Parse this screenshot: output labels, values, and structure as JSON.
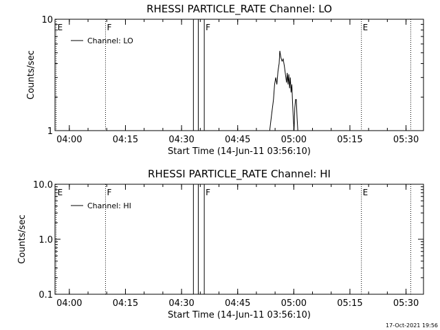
{
  "chart_data": [
    {
      "type": "line",
      "title": "RHESSI PARTICLE_RATE Channel: LO",
      "xlabel": "Start Time (14-Jun-11 03:56:10)",
      "ylabel": "Counts/sec",
      "x_unit": "minutes after 03:56:10",
      "xlim": [
        0,
        98.5
      ],
      "ylim": [
        1,
        10
      ],
      "y_scale": "log",
      "x_ticks": [
        {
          "x": 3.83,
          "label": "04:00"
        },
        {
          "x": 18.83,
          "label": "04:15"
        },
        {
          "x": 33.83,
          "label": "04:30"
        },
        {
          "x": 48.83,
          "label": "04:45"
        },
        {
          "x": 63.83,
          "label": "05:00"
        },
        {
          "x": 78.83,
          "label": "05:15"
        },
        {
          "x": 93.83,
          "label": "05:30"
        }
      ],
      "y_ticks": [
        {
          "y": 1,
          "label": "1"
        },
        {
          "y": 10,
          "label": "10"
        }
      ],
      "legend": {
        "placement": "top-left",
        "label": "Channel: LO"
      },
      "markers": [
        {
          "x": 0.3,
          "label": "E",
          "style": "dotted"
        },
        {
          "x": 13.5,
          "label": "F",
          "style": "dotted"
        },
        {
          "x": 37.0,
          "label": "",
          "style": "solid"
        },
        {
          "x": 38.3,
          "label": "",
          "style": "solid"
        },
        {
          "x": 39.9,
          "label": "F",
          "style": "solid"
        },
        {
          "x": 81.9,
          "label": "E",
          "style": "dotted"
        },
        {
          "x": 95.1,
          "label": "",
          "style": "dotted"
        }
      ],
      "series": [
        {
          "name": "Channel: LO",
          "points": [
            [
              57.4,
              1
            ],
            [
              57.9,
              1.4
            ],
            [
              58.4,
              1.9
            ],
            [
              58.7,
              2.6
            ],
            [
              59.0,
              3.0
            ],
            [
              59.3,
              2.6
            ],
            [
              59.6,
              3.4
            ],
            [
              59.9,
              4.0
            ],
            [
              60.1,
              5.2
            ],
            [
              60.4,
              4.5
            ],
            [
              60.7,
              4.2
            ],
            [
              61.0,
              4.4
            ],
            [
              61.3,
              3.8
            ],
            [
              61.6,
              3.2
            ],
            [
              61.9,
              2.7
            ],
            [
              62.1,
              3.3
            ],
            [
              62.3,
              2.6
            ],
            [
              62.5,
              3.2
            ],
            [
              62.7,
              2.4
            ],
            [
              62.9,
              3.0
            ],
            [
              63.1,
              2.2
            ],
            [
              63.3,
              2.6
            ],
            [
              63.5,
              1.8
            ],
            [
              63.7,
              1.3
            ],
            [
              63.9,
              1.0
            ],
            [
              64.1,
              1.6
            ],
            [
              64.3,
              1.9
            ],
            [
              64.5,
              1.9
            ],
            [
              64.7,
              1.3
            ],
            [
              64.9,
              1
            ]
          ]
        }
      ]
    },
    {
      "type": "line",
      "title": "RHESSI PARTICLE_RATE Channel: HI",
      "xlabel": "Start Time (14-Jun-11 03:56:10)",
      "ylabel": "Counts/sec",
      "x_unit": "minutes after 03:56:10",
      "xlim": [
        0,
        98.5
      ],
      "ylim": [
        0.1,
        10
      ],
      "y_scale": "log",
      "x_ticks": [
        {
          "x": 3.83,
          "label": "04:00"
        },
        {
          "x": 18.83,
          "label": "04:15"
        },
        {
          "x": 33.83,
          "label": "04:30"
        },
        {
          "x": 48.83,
          "label": "04:45"
        },
        {
          "x": 63.83,
          "label": "05:00"
        },
        {
          "x": 78.83,
          "label": "05:15"
        },
        {
          "x": 93.83,
          "label": "05:30"
        }
      ],
      "y_ticks": [
        {
          "y": 0.1,
          "label": "0.1"
        },
        {
          "y": 1,
          "label": "1.0"
        },
        {
          "y": 10,
          "label": "10.0"
        }
      ],
      "legend": {
        "placement": "top-left",
        "label": "Channel: HI"
      },
      "markers": [
        {
          "x": 0.3,
          "label": "E",
          "style": "dotted"
        },
        {
          "x": 13.5,
          "label": "F",
          "style": "dotted"
        },
        {
          "x": 37.0,
          "label": "",
          "style": "solid"
        },
        {
          "x": 38.3,
          "label": "",
          "style": "solid"
        },
        {
          "x": 39.9,
          "label": "F",
          "style": "solid"
        },
        {
          "x": 81.9,
          "label": "E",
          "style": "dotted"
        },
        {
          "x": 95.1,
          "label": "",
          "style": "dotted"
        }
      ],
      "series": [
        {
          "name": "Channel: HI",
          "points": []
        }
      ]
    }
  ],
  "footer": {
    "timestamp": "17-Oct-2021 19:56"
  }
}
